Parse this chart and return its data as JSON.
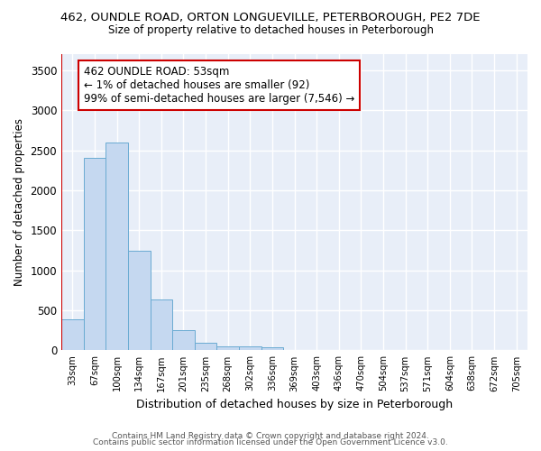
{
  "title_line1": "462, OUNDLE ROAD, ORTON LONGUEVILLE, PETERBOROUGH, PE2 7DE",
  "title_line2": "Size of property relative to detached houses in Peterborough",
  "xlabel": "Distribution of detached houses by size in Peterborough",
  "ylabel": "Number of detached properties",
  "categories": [
    "33sqm",
    "67sqm",
    "100sqm",
    "134sqm",
    "167sqm",
    "201sqm",
    "235sqm",
    "268sqm",
    "302sqm",
    "336sqm",
    "369sqm",
    "403sqm",
    "436sqm",
    "470sqm",
    "504sqm",
    "537sqm",
    "571sqm",
    "604sqm",
    "638sqm",
    "672sqm",
    "705sqm"
  ],
  "values": [
    390,
    2400,
    2600,
    1240,
    640,
    255,
    95,
    55,
    50,
    40,
    0,
    0,
    0,
    0,
    0,
    0,
    0,
    0,
    0,
    0,
    0
  ],
  "bar_color": "#c5d8f0",
  "bar_edge_color": "#6aabd2",
  "highlight_color": "#cc0000",
  "annotation_line1": "462 OUNDLE ROAD: 53sqm",
  "annotation_line2": "← 1% of detached houses are smaller (92)",
  "annotation_line3": "99% of semi-detached houses are larger (7,546) →",
  "annotation_box_color": "#ffffff",
  "annotation_box_edge_color": "#cc0000",
  "ylim": [
    0,
    3700
  ],
  "yticks": [
    0,
    500,
    1000,
    1500,
    2000,
    2500,
    3000,
    3500
  ],
  "bg_color": "#e8eef8",
  "grid_color": "#ffffff",
  "fig_bg_color": "#ffffff",
  "footer_line1": "Contains HM Land Registry data © Crown copyright and database right 2024.",
  "footer_line2": "Contains public sector information licensed under the Open Government Licence v3.0."
}
